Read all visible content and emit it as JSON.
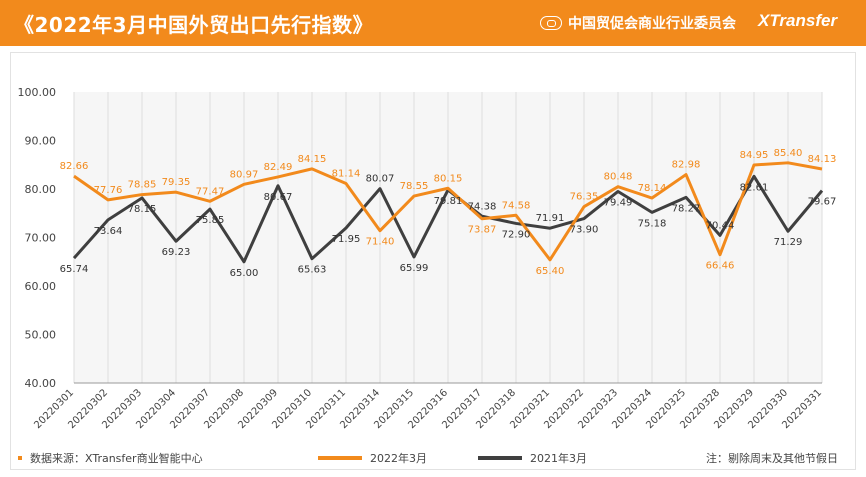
{
  "header": {
    "title": "《2022年3月中国外贸出口先行指数》",
    "org_name": "中国贸促会商业行业委员会",
    "brand_name": "XTransfer"
  },
  "footer": {
    "source_text": "数据来源：XTransfer商业智能中心",
    "note_text": "注：剔除周末及其他节假日"
  },
  "colors": {
    "accent": "#F28A1C",
    "series_2022": "#F28A1C",
    "series_2021": "#3F3F3F"
  },
  "chart_data": {
    "type": "line",
    "title": "《2022年3月中国外贸出口先行指数》",
    "xlabel": "",
    "ylabel": "",
    "ylim": [
      40,
      100
    ],
    "yticks": [
      "40.00",
      "50.00",
      "60.00",
      "70.00",
      "80.00",
      "90.00",
      "100.00"
    ],
    "grid": "vertical",
    "legend_position": "bottom",
    "categories": [
      "20220301",
      "20220302",
      "20220303",
      "20220304",
      "20220307",
      "20220308",
      "20220309",
      "20220310",
      "20220311",
      "20220314",
      "20220315",
      "20220316",
      "20220317",
      "20220318",
      "20220321",
      "20220322",
      "20220323",
      "20220324",
      "20220325",
      "20220328",
      "20220329",
      "20220330",
      "20220331"
    ],
    "series": [
      {
        "name": "2022年3月",
        "values": [
          82.66,
          77.76,
          78.85,
          79.35,
          77.47,
          80.97,
          82.49,
          84.15,
          81.14,
          71.4,
          78.55,
          80.15,
          73.87,
          74.58,
          65.4,
          76.35,
          80.48,
          78.14,
          82.98,
          66.46,
          84.95,
          85.4,
          84.13
        ],
        "labels": [
          "82.66",
          "77.76",
          "78.85",
          "79.35",
          "77.47",
          "80.97",
          "82.49",
          "84.15",
          "81.14",
          "71.40",
          "78.55",
          "80.15",
          "73.87",
          "74.58",
          "65.40",
          "76.35",
          "80.48",
          "78.14",
          "82.98",
          "66.46",
          "84.95",
          "85.40",
          "84.13"
        ]
      },
      {
        "name": "2021年3月",
        "values": [
          65.74,
          73.64,
          78.15,
          69.23,
          75.85,
          65.0,
          80.67,
          65.63,
          71.95,
          80.07,
          65.99,
          79.81,
          74.38,
          72.9,
          71.91,
          73.9,
          79.49,
          75.18,
          78.27,
          70.44,
          82.61,
          71.29,
          79.67
        ],
        "labels": [
          "65.74",
          "73.64",
          "78.15",
          "69.23",
          "75.85",
          "65.00",
          "80.67",
          "65.63",
          "71.95",
          "80.07",
          "65.99",
          "79.81",
          "74.38",
          "72.90",
          "71.91",
          "73.90",
          "79.49",
          "75.18",
          "78.27",
          "70.44",
          "82.61",
          "71.29",
          "79.67"
        ]
      }
    ]
  }
}
